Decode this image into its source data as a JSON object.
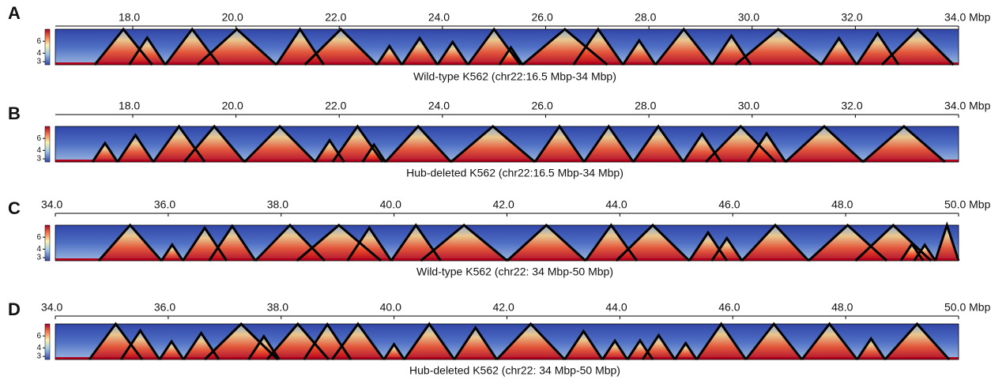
{
  "chart_data": [
    {
      "type": "heatmap",
      "panel_label": "A",
      "title": "Wild-type K562 (chr22:16.5 Mbp-34 Mbp)",
      "xlim": [
        16.5,
        34.0
      ],
      "xticks": [
        {
          "value": 18,
          "label": "18.0"
        },
        {
          "value": 20,
          "label": "20.0"
        },
        {
          "value": 22,
          "label": "22.0"
        },
        {
          "value": 24,
          "label": "24.0"
        },
        {
          "value": 26,
          "label": "26.0"
        },
        {
          "value": 28,
          "label": "28.0"
        },
        {
          "value": 30,
          "label": "30.0"
        },
        {
          "value": 32,
          "label": "32.0"
        },
        {
          "value": 34,
          "label": "34.0 Mbp"
        }
      ],
      "colorbar": {
        "lim": [
          2.7,
          9
        ],
        "ticks": [
          3,
          4,
          6
        ],
        "scale": "log"
      }
    },
    {
      "type": "heatmap",
      "panel_label": "B",
      "title": "Hub-deleted K562 (chr22:16.5 Mbp-34 Mbp)",
      "xlim": [
        16.5,
        34.0
      ],
      "xticks": [
        {
          "value": 18,
          "label": "18.0"
        },
        {
          "value": 20,
          "label": "20.0"
        },
        {
          "value": 22,
          "label": "22.0"
        },
        {
          "value": 24,
          "label": "24.0"
        },
        {
          "value": 26,
          "label": "26.0"
        },
        {
          "value": 28,
          "label": "28.0"
        },
        {
          "value": 30,
          "label": "30.0"
        },
        {
          "value": 32,
          "label": "32.0"
        },
        {
          "value": 34,
          "label": "34.0 Mbp"
        }
      ],
      "colorbar": {
        "lim": [
          2.7,
          9
        ],
        "ticks": [
          3,
          4,
          6
        ],
        "scale": "log"
      }
    },
    {
      "type": "heatmap",
      "panel_label": "C",
      "title": "Wild-type K562 (chr22: 34 Mbp-50 Mbp)",
      "xlim": [
        34.0,
        50.0
      ],
      "xticks": [
        {
          "value": 34,
          "label": "34.0"
        },
        {
          "value": 36,
          "label": "36.0"
        },
        {
          "value": 38,
          "label": "38.0"
        },
        {
          "value": 40,
          "label": "40.0"
        },
        {
          "value": 42,
          "label": "42.0"
        },
        {
          "value": 44,
          "label": "44.0"
        },
        {
          "value": 46,
          "label": "46.0"
        },
        {
          "value": 48,
          "label": "48.0"
        },
        {
          "value": 50,
          "label": "50.0 Mbp"
        }
      ],
      "colorbar": {
        "lim": [
          2.7,
          9
        ],
        "ticks": [
          3,
          4,
          6
        ],
        "scale": "log"
      }
    },
    {
      "type": "heatmap",
      "panel_label": "D",
      "title": "Hub-deleted K562 (chr22: 34 Mbp-50 Mbp)",
      "xlim": [
        34.0,
        50.0
      ],
      "xticks": [
        {
          "value": 34,
          "label": "34.0"
        },
        {
          "value": 36,
          "label": "36.0"
        },
        {
          "value": 38,
          "label": "38.0"
        },
        {
          "value": 40,
          "label": "40.0"
        },
        {
          "value": 42,
          "label": "42.0"
        },
        {
          "value": 44,
          "label": "44.0"
        },
        {
          "value": 46,
          "label": "46.0"
        },
        {
          "value": 48,
          "label": "48.0"
        },
        {
          "value": 50,
          "label": "50.0 Mbp"
        }
      ],
      "colorbar": {
        "lim": [
          2.7,
          9
        ],
        "ticks": [
          3,
          4,
          6
        ],
        "scale": "log"
      }
    }
  ]
}
